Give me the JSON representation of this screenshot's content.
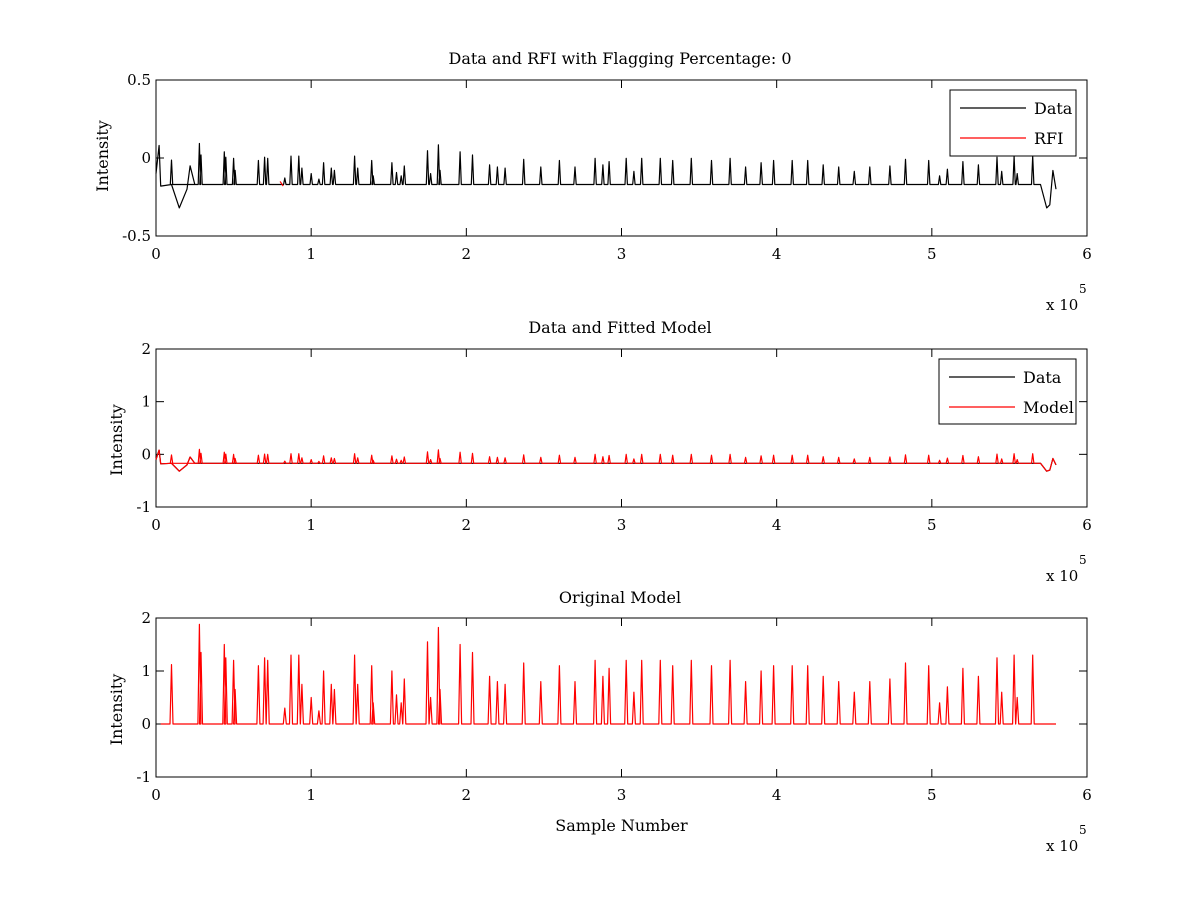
{
  "chart_data": [
    {
      "type": "line",
      "title": "Data and RFI with Flagging Percentage: 0",
      "xlabel": "",
      "ylabel": "Intensity",
      "xlim": [
        0,
        6
      ],
      "ylim": [
        -0.5,
        0.5
      ],
      "xticks": [
        "0",
        "1",
        "2",
        "3",
        "4",
        "5",
        "6"
      ],
      "yticks": [
        "-0.5",
        "0",
        "0.5"
      ],
      "x_exponent": {
        "base": "x 10",
        "power": "5"
      },
      "legend": {
        "placement": "top-right",
        "entries": [
          {
            "name": "Data",
            "color": "#000000"
          },
          {
            "name": "RFI",
            "color": "#ff0000"
          }
        ]
      },
      "series": [
        {
          "name": "Data",
          "color": "#000000",
          "baseline": -0.17,
          "x_end": 5.8,
          "peak_scale": 0.14
        },
        {
          "name": "RFI",
          "color": "#ff0000",
          "points": [
            [
              0.8,
              -0.15
            ],
            [
              0.82,
              -0.18
            ]
          ]
        }
      ]
    },
    {
      "type": "line",
      "title": "Data and Fitted Model",
      "xlabel": "",
      "ylabel": "Intensity",
      "xlim": [
        0,
        6
      ],
      "ylim": [
        -1,
        2
      ],
      "xticks": [
        "0",
        "1",
        "2",
        "3",
        "4",
        "5",
        "6"
      ],
      "yticks": [
        "-1",
        "0",
        "1",
        "2"
      ],
      "x_exponent": {
        "base": "x 10",
        "power": "5"
      },
      "legend": {
        "placement": "top-right",
        "entries": [
          {
            "name": "Data",
            "color": "#000000"
          },
          {
            "name": "Model",
            "color": "#ff0000"
          }
        ]
      },
      "series": [
        {
          "name": "Data",
          "color": "#000000",
          "baseline": -0.17,
          "x_end": 5.8
        },
        {
          "name": "Model",
          "color": "#ff0000",
          "baseline": -0.17,
          "x_end": 5.8,
          "peak_scale": 0.14
        }
      ]
    },
    {
      "type": "line",
      "title": "Original Model",
      "xlabel": "Sample Number",
      "ylabel": "Intensity",
      "xlim": [
        0,
        6
      ],
      "ylim": [
        -1,
        2
      ],
      "xticks": [
        "0",
        "1",
        "2",
        "3",
        "4",
        "5",
        "6"
      ],
      "yticks": [
        "-1",
        "0",
        "1",
        "2"
      ],
      "x_exponent": {
        "base": "x 10",
        "power": "5"
      },
      "series": [
        {
          "name": "Model",
          "color": "#ff0000",
          "baseline": 0,
          "x_end": 5.8,
          "peak_scale": 1.0
        }
      ]
    }
  ],
  "peaks": [
    [
      0.1,
      1.12
    ],
    [
      0.28,
      1.88
    ],
    [
      0.29,
      1.35
    ],
    [
      0.44,
      1.5
    ],
    [
      0.45,
      1.25
    ],
    [
      0.5,
      1.2
    ],
    [
      0.51,
      0.65
    ],
    [
      0.66,
      1.1
    ],
    [
      0.7,
      1.25
    ],
    [
      0.72,
      1.2
    ],
    [
      0.83,
      0.3
    ],
    [
      0.87,
      1.3
    ],
    [
      0.92,
      1.3
    ],
    [
      0.94,
      0.75
    ],
    [
      1.0,
      0.5
    ],
    [
      1.05,
      0.25
    ],
    [
      1.08,
      1.0
    ],
    [
      1.13,
      0.75
    ],
    [
      1.15,
      0.65
    ],
    [
      1.28,
      1.3
    ],
    [
      1.3,
      0.75
    ],
    [
      1.39,
      1.1
    ],
    [
      1.4,
      0.4
    ],
    [
      1.52,
      1.0
    ],
    [
      1.55,
      0.55
    ],
    [
      1.58,
      0.4
    ],
    [
      1.6,
      0.85
    ],
    [
      1.75,
      1.55
    ],
    [
      1.77,
      0.5
    ],
    [
      1.82,
      1.82
    ],
    [
      1.83,
      0.65
    ],
    [
      1.96,
      1.5
    ],
    [
      2.04,
      1.35
    ],
    [
      2.15,
      0.9
    ],
    [
      2.2,
      0.8
    ],
    [
      2.25,
      0.75
    ],
    [
      2.37,
      1.15
    ],
    [
      2.48,
      0.8
    ],
    [
      2.6,
      1.1
    ],
    [
      2.7,
      0.8
    ],
    [
      2.83,
      1.2
    ],
    [
      2.88,
      0.9
    ],
    [
      2.92,
      1.05
    ],
    [
      3.03,
      1.2
    ],
    [
      3.08,
      0.6
    ],
    [
      3.13,
      1.2
    ],
    [
      3.25,
      1.2
    ],
    [
      3.33,
      1.1
    ],
    [
      3.45,
      1.2
    ],
    [
      3.58,
      1.1
    ],
    [
      3.7,
      1.2
    ],
    [
      3.8,
      0.8
    ],
    [
      3.9,
      1.0
    ],
    [
      3.98,
      1.1
    ],
    [
      4.1,
      1.1
    ],
    [
      4.2,
      1.1
    ],
    [
      4.3,
      0.9
    ],
    [
      4.4,
      0.8
    ],
    [
      4.5,
      0.6
    ],
    [
      4.6,
      0.8
    ],
    [
      4.73,
      0.85
    ],
    [
      4.83,
      1.15
    ],
    [
      4.98,
      1.1
    ],
    [
      5.05,
      0.4
    ],
    [
      5.1,
      0.7
    ],
    [
      5.2,
      1.05
    ],
    [
      5.3,
      0.9
    ],
    [
      5.42,
      1.25
    ],
    [
      5.45,
      0.6
    ],
    [
      5.53,
      1.3
    ],
    [
      5.55,
      0.5
    ],
    [
      5.65,
      1.3
    ]
  ]
}
